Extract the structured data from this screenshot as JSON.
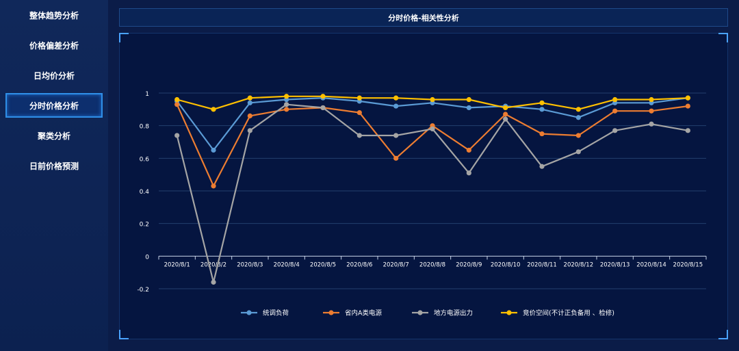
{
  "sidebar": {
    "items": [
      {
        "label": "整体趋势分析",
        "active": false
      },
      {
        "label": "价格偏差分析",
        "active": false
      },
      {
        "label": "日均价分析",
        "active": false
      },
      {
        "label": "分时价格分析",
        "active": true
      },
      {
        "label": "聚类分析",
        "active": false
      },
      {
        "label": "日前价格预测",
        "active": false
      }
    ]
  },
  "header": {
    "title": "分时价格-相关性分析"
  },
  "colors": {
    "background": "#0a1a44",
    "panel": "#051540",
    "grid": "#23406e",
    "accent": "#2f8fe8"
  },
  "chart_data": {
    "type": "line",
    "title": "",
    "xlabel": "",
    "ylabel": "",
    "categories": [
      "2020/8/1",
      "2020/8/2",
      "2020/8/3",
      "2020/8/4",
      "2020/8/5",
      "2020/8/6",
      "2020/8/7",
      "2020/8/8",
      "2020/8/9",
      "2020/8/10",
      "2020/8/11",
      "2020/8/12",
      "2020/8/13",
      "2020/8/14",
      "2020/8/15"
    ],
    "ylim": [
      -0.2,
      1
    ],
    "yticks": [
      -0.2,
      0,
      0.2,
      0.4,
      0.6,
      0.8,
      1
    ],
    "ytick_labels": [
      "-0.2",
      "0",
      "0.2",
      "0.4",
      "0.6",
      "0.8",
      "1"
    ],
    "grid": true,
    "legend_position": "bottom",
    "series": [
      {
        "name": "统调负荷",
        "color": "#5b9bd5",
        "values": [
          0.95,
          0.65,
          0.94,
          0.96,
          0.97,
          0.95,
          0.92,
          0.94,
          0.91,
          0.92,
          0.9,
          0.85,
          0.94,
          0.94,
          0.97
        ]
      },
      {
        "name": "省内A类电源",
        "color": "#ed7d31",
        "values": [
          0.93,
          0.43,
          0.86,
          0.9,
          0.91,
          0.88,
          0.6,
          0.8,
          0.65,
          0.87,
          0.75,
          0.74,
          0.89,
          0.89,
          0.92
        ]
      },
      {
        "name": "地方电源出力",
        "color": "#a5a5a5",
        "values": [
          0.74,
          -0.16,
          0.77,
          0.93,
          0.91,
          0.74,
          0.74,
          0.78,
          0.51,
          0.84,
          0.55,
          0.64,
          0.77,
          0.81,
          0.77
        ]
      },
      {
        "name": "竞价空间(不计正负备用 、检修)",
        "color": "#ffc000",
        "values": [
          0.96,
          0.9,
          0.97,
          0.98,
          0.98,
          0.97,
          0.97,
          0.96,
          0.96,
          0.91,
          0.94,
          0.9,
          0.96,
          0.96,
          0.97
        ]
      }
    ]
  }
}
